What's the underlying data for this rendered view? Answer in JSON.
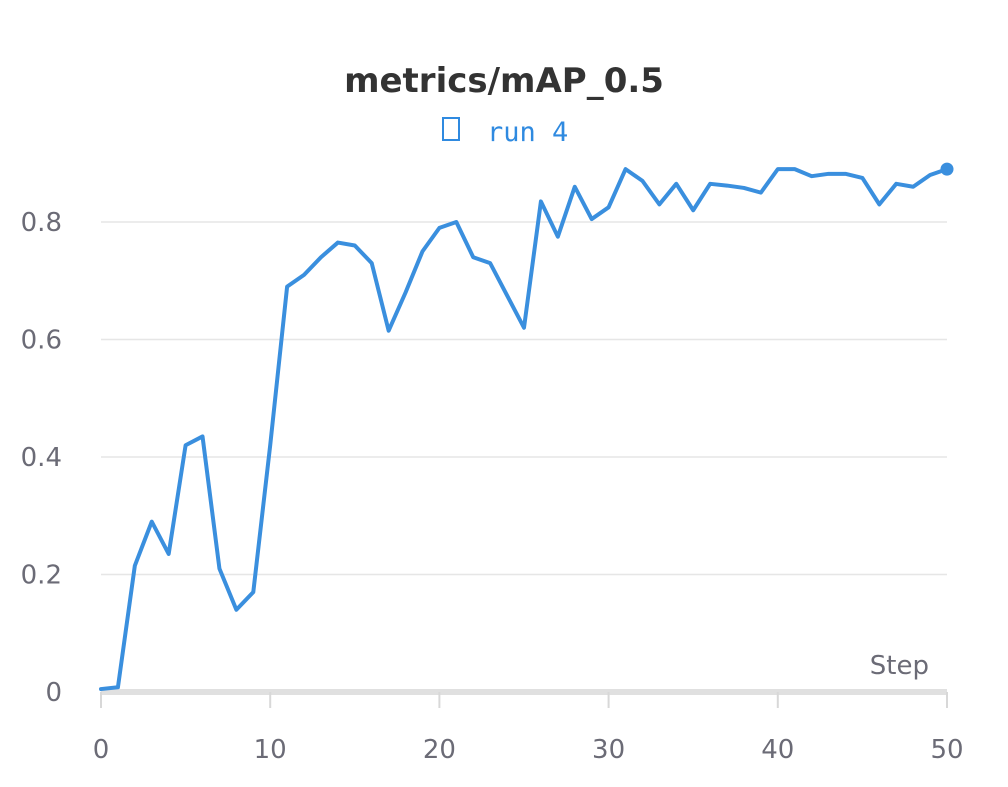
{
  "chart_data": {
    "type": "line",
    "title": "metrics/mAP_0.5",
    "xlabel": "Step",
    "ylabel": "",
    "xlim": [
      0,
      50
    ],
    "ylim": [
      0,
      0.9
    ],
    "grid": true,
    "x_ticks": [
      0,
      10,
      20,
      30,
      40,
      50
    ],
    "x_tick_labels": [
      "0",
      "10",
      "20",
      "30",
      "40",
      "50"
    ],
    "y_ticks": [
      0,
      0.2,
      0.4,
      0.6,
      0.8
    ],
    "y_tick_labels": [
      "0",
      "0.2",
      "0.4",
      "0.6",
      "0.8"
    ],
    "legend": {
      "placement": "top-center",
      "entries": [
        {
          "name": "run 4",
          "color": "#2f8ae0",
          "icon": "run-marker-icon"
        }
      ]
    },
    "series": [
      {
        "name": "run 4",
        "color": "#3a8fde",
        "x": [
          0,
          1,
          2,
          3,
          4,
          5,
          6,
          7,
          8,
          9,
          10,
          11,
          12,
          13,
          14,
          15,
          16,
          17,
          18,
          19,
          20,
          21,
          22,
          23,
          24,
          25,
          26,
          27,
          28,
          29,
          30,
          31,
          32,
          33,
          34,
          35,
          36,
          37,
          38,
          39,
          40,
          41,
          42,
          43,
          44,
          45,
          46,
          47,
          48,
          49,
          50
        ],
        "y": [
          0.005,
          0.008,
          0.215,
          0.29,
          0.235,
          0.42,
          0.435,
          0.21,
          0.14,
          0.17,
          0.42,
          0.69,
          0.71,
          0.74,
          0.765,
          0.76,
          0.73,
          0.615,
          0.68,
          0.75,
          0.79,
          0.8,
          0.74,
          0.73,
          0.675,
          0.62,
          0.835,
          0.775,
          0.86,
          0.805,
          0.825,
          0.89,
          0.87,
          0.83,
          0.865,
          0.82,
          0.865,
          0.862,
          0.858,
          0.85,
          0.89,
          0.89,
          0.878,
          0.882,
          0.882,
          0.875,
          0.83,
          0.865,
          0.86,
          0.88,
          0.89
        ]
      }
    ]
  }
}
